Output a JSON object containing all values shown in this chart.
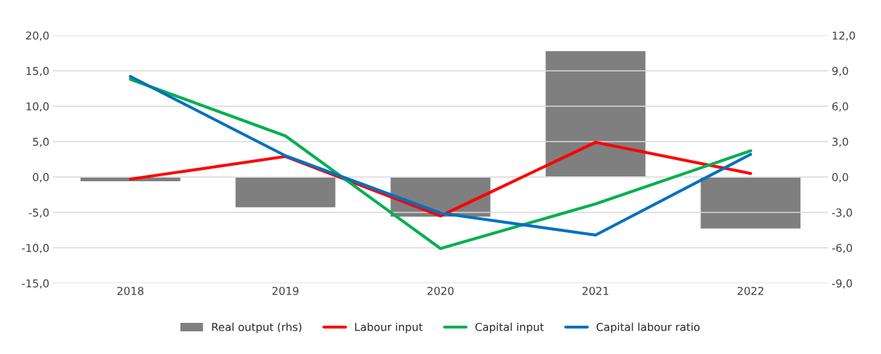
{
  "chart_data": {
    "type": "line",
    "categories": [
      "2018",
      "2019",
      "2020",
      "2021",
      "2022"
    ],
    "series": [
      {
        "name": "Real output (rhs)",
        "type": "bar",
        "axis": "y2",
        "color": "#7f7f7f",
        "values": [
          -0.4,
          -2.6,
          -3.4,
          10.7,
          -4.4
        ]
      },
      {
        "name": "Labour input",
        "color": "#ff0000",
        "values": [
          -0.3,
          2.9,
          -5.5,
          4.9,
          0.5
        ]
      },
      {
        "name": "Capital input",
        "color": "#00b050",
        "values": [
          13.8,
          5.8,
          -10.1,
          -3.8,
          3.7
        ]
      },
      {
        "name": "Capital labour ratio",
        "color": "#0070c0",
        "values": [
          14.2,
          3.0,
          -5.1,
          -8.2,
          3.2
        ]
      }
    ],
    "ylim": [
      -15,
      20
    ],
    "yticks": [
      {
        "value": -15,
        "label": "-15,0"
      },
      {
        "value": -10,
        "label": "-10,0"
      },
      {
        "value": -5,
        "label": "-5,0"
      },
      {
        "value": 0,
        "label": "0,0"
      },
      {
        "value": 5,
        "label": "5,0"
      },
      {
        "value": 10,
        "label": "10,0"
      },
      {
        "value": 15,
        "label": "15,0"
      },
      {
        "value": 20,
        "label": "20,0"
      }
    ],
    "y2lim": [
      -9,
      12
    ],
    "y2ticks": [
      {
        "value": -9,
        "label": "-9,0"
      },
      {
        "value": -6,
        "label": "-6,0"
      },
      {
        "value": -3,
        "label": "-3,0"
      },
      {
        "value": 0,
        "label": "0,0"
      },
      {
        "value": 3,
        "label": "3,0"
      },
      {
        "value": 6,
        "label": "6,0"
      },
      {
        "value": 9,
        "label": "9,0"
      },
      {
        "value": 12,
        "label": "12,0"
      }
    ],
    "grid": "y",
    "legend": "bottom",
    "marker": "none",
    "line_style": "solid"
  }
}
